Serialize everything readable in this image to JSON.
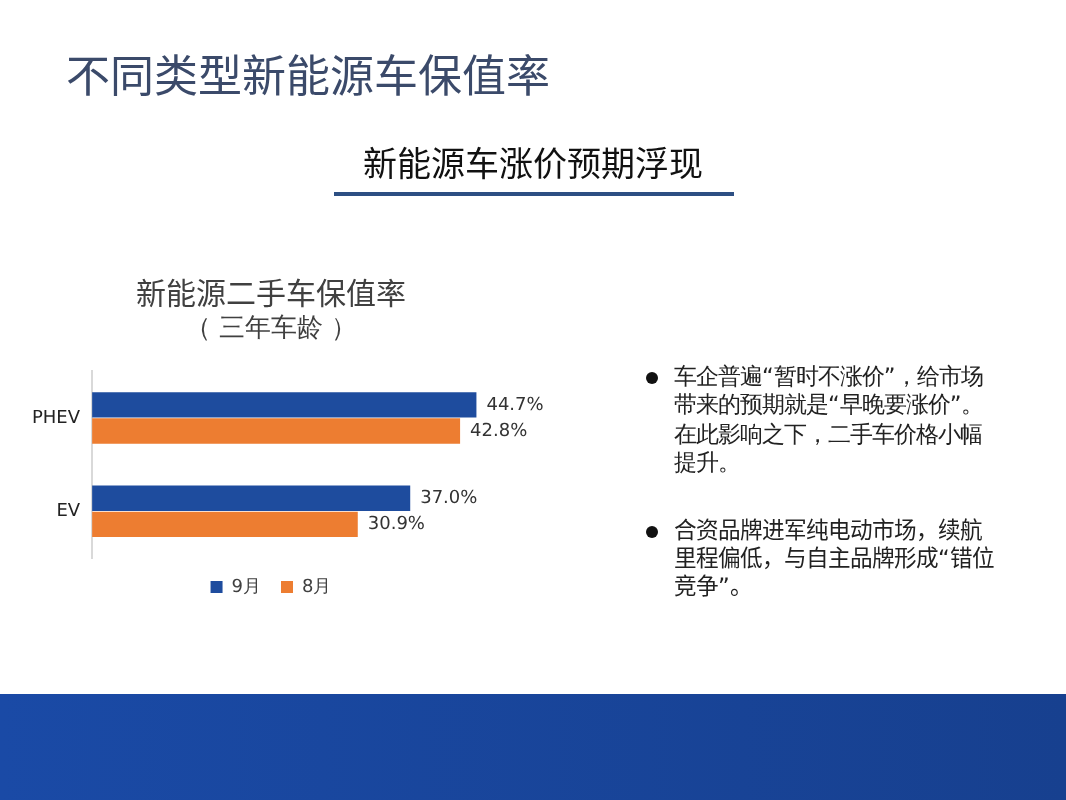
{
  "chart_data": {
    "type": "bar",
    "orientation": "horizontal",
    "title": "新能源二手车保值率",
    "subtitle": "（ 三年车龄 ）",
    "categories": [
      "PHEV",
      "EV"
    ],
    "series": [
      {
        "name": "9月",
        "color": "#1e4c9e",
        "values": [
          44.7,
          37.0
        ],
        "value_labels": [
          "44.7%",
          "37.0%"
        ]
      },
      {
        "name": "8月",
        "color": "#ed7d31",
        "values": [
          42.8,
          30.9
        ],
        "value_labels": [
          "42.8%",
          "30.9%"
        ]
      }
    ],
    "legend": "bottom",
    "grid": false,
    "tick_labels": "y",
    "annotations": [
      "不同类型新能源车保值率",
      "新能源车涨价预期浮现",
      "车企普遍“暂时不涨价”，给市场带来的预期就是“早晚要涨价”。在此影响之下，二手车价格小幅提升。",
      "合资品牌进军纯电动市场，续航里程偏低，与自主品牌形成“错位竞争”。"
    ]
  }
}
